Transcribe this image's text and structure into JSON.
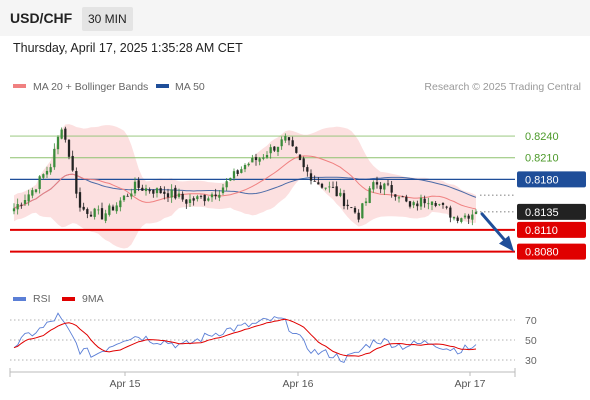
{
  "header": {
    "symbol": "USD/CHF",
    "timeframe": "30 MIN",
    "datetime": "Thursday, April 17, 2025 1:35:28 AM CET"
  },
  "legend": {
    "ma20_label": "MA 20 + Bollinger Bands",
    "ma50_label": "MA 50",
    "ma20_color": "#f08080",
    "ma50_color": "#1f4e99",
    "credit": "Research © 2025 Trading Central"
  },
  "chart_data": [
    {
      "type": "candlestick",
      "title": "",
      "x_tick_labels": [
        "Apr 15",
        "Apr 16",
        "Apr 17"
      ],
      "ylim": [
        0.806,
        0.829
      ],
      "resistance_lines": [
        {
          "value": 0.824,
          "label": "0.8240",
          "color": "#8dc26f"
        },
        {
          "value": 0.821,
          "label": "0.8210",
          "color": "#8dc26f"
        },
        {
          "value": 0.818,
          "label": "0.8180",
          "color": "#1f4e99"
        }
      ],
      "support_lines": [
        {
          "value": 0.811,
          "label": "0.8110",
          "color": "#e00000"
        },
        {
          "value": 0.808,
          "label": "0.8080",
          "color": "#e00000"
        }
      ],
      "current_price": {
        "value": 0.8135,
        "label": "0.8135"
      },
      "forecast_arrow": {
        "from": 0.8135,
        "to": 0.808,
        "color": "#1f4e99"
      },
      "close_anchors": [
        [
          0,
          0.814
        ],
        [
          5,
          0.8165
        ],
        [
          10,
          0.82
        ],
        [
          13,
          0.8255
        ],
        [
          15,
          0.8215
        ],
        [
          18,
          0.814
        ],
        [
          24,
          0.813
        ],
        [
          28,
          0.8145
        ],
        [
          33,
          0.817
        ],
        [
          38,
          0.8165
        ],
        [
          43,
          0.816
        ],
        [
          47,
          0.815
        ],
        [
          52,
          0.8155
        ],
        [
          56,
          0.8165
        ],
        [
          59,
          0.818
        ],
        [
          63,
          0.82
        ],
        [
          67,
          0.821
        ],
        [
          71,
          0.8225
        ],
        [
          74,
          0.8235
        ],
        [
          76,
          0.822
        ],
        [
          79,
          0.8195
        ],
        [
          83,
          0.8175
        ],
        [
          87,
          0.8165
        ],
        [
          91,
          0.8145
        ],
        [
          94,
          0.813
        ],
        [
          96,
          0.815
        ],
        [
          98,
          0.8175
        ],
        [
          101,
          0.817
        ],
        [
          105,
          0.816
        ],
        [
          108,
          0.814
        ],
        [
          111,
          0.815
        ],
        [
          114,
          0.8155
        ],
        [
          117,
          0.814
        ],
        [
          120,
          0.8128
        ],
        [
          123,
          0.813
        ],
        [
          126,
          0.8135
        ]
      ]
    },
    {
      "type": "line",
      "legend": [
        "RSI",
        "9MA"
      ],
      "series_colors": {
        "rsi": "#5b7fd6",
        "ma9": "#e00000"
      },
      "y_ticks": [
        70,
        50,
        30
      ],
      "ylim": [
        20,
        80
      ],
      "rsi_anchors": [
        [
          0,
          44
        ],
        [
          4,
          55
        ],
        [
          8,
          62
        ],
        [
          12,
          74
        ],
        [
          15,
          58
        ],
        [
          18,
          40
        ],
        [
          22,
          35
        ],
        [
          26,
          44
        ],
        [
          30,
          52
        ],
        [
          34,
          54
        ],
        [
          38,
          50
        ],
        [
          42,
          48
        ],
        [
          46,
          44
        ],
        [
          50,
          50
        ],
        [
          54,
          56
        ],
        [
          58,
          60
        ],
        [
          62,
          63
        ],
        [
          66,
          66
        ],
        [
          70,
          70
        ],
        [
          73,
          70
        ],
        [
          76,
          60
        ],
        [
          79,
          46
        ],
        [
          82,
          38
        ],
        [
          86,
          36
        ],
        [
          90,
          31
        ],
        [
          93,
          35
        ],
        [
          96,
          44
        ],
        [
          99,
          50
        ],
        [
          102,
          48
        ],
        [
          106,
          44
        ],
        [
          110,
          46
        ],
        [
          114,
          48
        ],
        [
          118,
          42
        ],
        [
          122,
          40
        ],
        [
          126,
          44
        ]
      ]
    }
  ]
}
